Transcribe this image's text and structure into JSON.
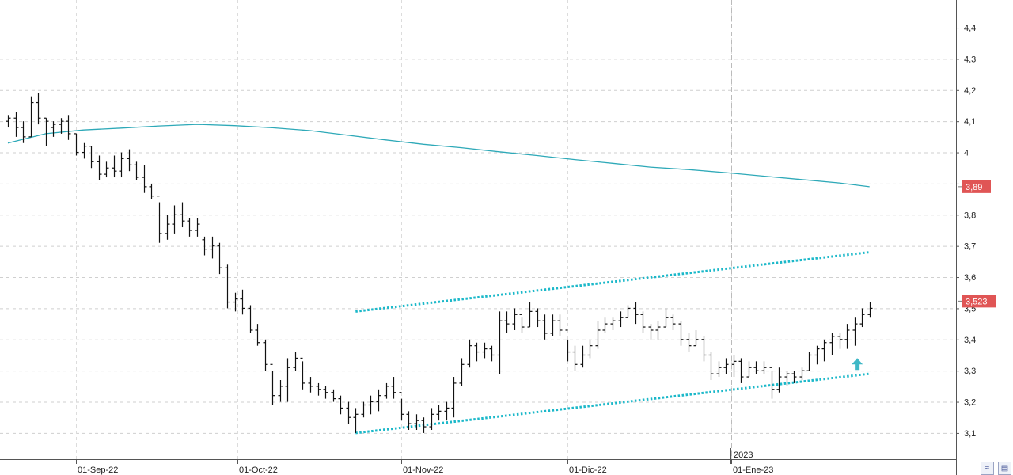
{
  "chart_data": {
    "type": "ohlc",
    "title": "",
    "xlabel": "",
    "ylabel": "",
    "ylim": [
      3.016,
      4.489
    ],
    "y_ticks": [
      "3,1",
      "3,2",
      "3,3",
      "3,4",
      "3,5",
      "3,6",
      "3,7",
      "3,8",
      "3,9",
      "4",
      "4,1",
      "4,2",
      "4,3",
      "4,4"
    ],
    "y_tick_values": [
      3.1,
      3.2,
      3.3,
      3.4,
      3.5,
      3.6,
      3.7,
      3.8,
      3.9,
      4.0,
      4.1,
      4.2,
      4.3,
      4.4
    ],
    "x_ticks": [
      {
        "label": "01-Sep-22",
        "date": "2022-09-01"
      },
      {
        "label": "01-Oct-22",
        "date": "2022-10-01"
      },
      {
        "label": "01-Nov-22",
        "date": "2022-11-01"
      },
      {
        "label": "01-Dic-22",
        "date": "2022-12-01"
      },
      {
        "label": "01-Ene-23",
        "date": "2023-01-01"
      }
    ],
    "year_marker": {
      "label": "2023",
      "date": "2023-01-01"
    },
    "grid": true,
    "price_badges": [
      {
        "label": "3,89",
        "value": 3.89,
        "color": "#e05555"
      },
      {
        "label": "3,523",
        "value": 3.523,
        "color": "#e05555"
      }
    ],
    "moving_average": {
      "color": "#2ea9b8",
      "points": [
        [
          "2022-08-19",
          4.03
        ],
        [
          "2022-08-26",
          4.06
        ],
        [
          "2022-09-02",
          4.072
        ],
        [
          "2022-09-09",
          4.078
        ],
        [
          "2022-09-16",
          4.085
        ],
        [
          "2022-09-23",
          4.09
        ],
        [
          "2022-09-30",
          4.086
        ],
        [
          "2022-10-07",
          4.079
        ],
        [
          "2022-10-14",
          4.07
        ],
        [
          "2022-10-21",
          4.055
        ],
        [
          "2022-10-28",
          4.04
        ],
        [
          "2022-11-04",
          4.026
        ],
        [
          "2022-11-11",
          4.015
        ],
        [
          "2022-11-18",
          4.002
        ],
        [
          "2022-11-25",
          3.99
        ],
        [
          "2022-12-02",
          3.977
        ],
        [
          "2022-12-09",
          3.965
        ],
        [
          "2022-12-16",
          3.953
        ],
        [
          "2022-12-23",
          3.945
        ],
        [
          "2022-12-30",
          3.935
        ],
        [
          "2023-01-06",
          3.924
        ],
        [
          "2023-01-13",
          3.913
        ],
        [
          "2023-01-20",
          3.902
        ],
        [
          "2023-01-26",
          3.89
        ]
      ]
    },
    "channel_lines": [
      {
        "name": "upper",
        "color": "#1bb8c9",
        "from": [
          "2022-10-24",
          3.49
        ],
        "to": [
          "2023-01-26",
          3.68
        ]
      },
      {
        "name": "lower",
        "color": "#1bb8c9",
        "from": [
          "2022-10-24",
          3.1
        ],
        "to": [
          "2023-01-26",
          3.29
        ]
      }
    ],
    "signal": {
      "type": "arrow-up",
      "date": "2023-01-25",
      "value": 3.32,
      "color": "#3fb8c6"
    },
    "bars": [
      [
        "2022-08-19",
        4.1,
        4.12,
        4.08,
        4.11
      ],
      [
        "2022-08-22",
        4.11,
        4.13,
        4.05,
        4.08
      ],
      [
        "2022-08-23",
        4.08,
        4.1,
        4.03,
        4.05
      ],
      [
        "2022-08-24",
        4.05,
        4.18,
        4.05,
        4.16
      ],
      [
        "2022-08-25",
        4.16,
        4.19,
        4.09,
        4.11
      ],
      [
        "2022-08-26",
        4.11,
        4.11,
        4.02,
        4.1
      ],
      [
        "2022-08-29",
        4.08,
        4.1,
        4.05,
        4.09
      ],
      [
        "2022-08-30",
        4.09,
        4.11,
        4.06,
        4.1
      ],
      [
        "2022-08-31",
        4.1,
        4.12,
        4.04,
        4.06
      ],
      [
        "2022-09-01",
        4.06,
        4.06,
        3.99,
        4.0
      ],
      [
        "2022-09-02",
        4.0,
        4.03,
        3.98,
        4.02
      ],
      [
        "2022-09-05",
        4.02,
        4.02,
        3.95,
        3.97
      ],
      [
        "2022-09-06",
        3.97,
        3.99,
        3.91,
        3.93
      ],
      [
        "2022-09-07",
        3.93,
        3.97,
        3.92,
        3.95
      ],
      [
        "2022-09-08",
        3.95,
        3.99,
        3.92,
        3.94
      ],
      [
        "2022-09-09",
        3.94,
        4.0,
        3.92,
        3.98
      ],
      [
        "2022-09-12",
        3.98,
        4.01,
        3.94,
        3.96
      ],
      [
        "2022-09-13",
        3.96,
        3.97,
        3.91,
        3.92
      ],
      [
        "2022-09-14",
        3.92,
        3.96,
        3.87,
        3.89
      ],
      [
        "2022-09-15",
        3.89,
        3.9,
        3.85,
        3.86
      ],
      [
        "2022-09-16",
        3.86,
        3.84,
        3.71,
        3.74
      ],
      [
        "2022-09-19",
        3.74,
        3.8,
        3.72,
        3.77
      ],
      [
        "2022-09-20",
        3.77,
        3.83,
        3.74,
        3.8
      ],
      [
        "2022-09-21",
        3.8,
        3.84,
        3.76,
        3.78
      ],
      [
        "2022-09-22",
        3.78,
        3.79,
        3.73,
        3.75
      ],
      [
        "2022-09-23",
        3.75,
        3.79,
        3.73,
        3.77
      ],
      [
        "2022-09-26",
        3.72,
        3.73,
        3.67,
        3.69
      ],
      [
        "2022-09-27",
        3.69,
        3.73,
        3.66,
        3.7
      ],
      [
        "2022-09-28",
        3.7,
        3.71,
        3.61,
        3.63
      ],
      [
        "2022-09-29",
        3.63,
        3.64,
        3.5,
        3.52
      ],
      [
        "2022-09-30",
        3.52,
        3.55,
        3.49,
        3.53
      ],
      [
        "2022-10-03",
        3.53,
        3.56,
        3.48,
        3.5
      ],
      [
        "2022-10-04",
        3.5,
        3.51,
        3.42,
        3.43
      ],
      [
        "2022-10-05",
        3.43,
        3.45,
        3.38,
        3.39
      ],
      [
        "2022-10-06",
        3.39,
        3.4,
        3.3,
        3.32
      ],
      [
        "2022-10-07",
        3.32,
        3.3,
        3.19,
        3.22
      ],
      [
        "2022-10-10",
        3.22,
        3.27,
        3.2,
        3.25
      ],
      [
        "2022-10-11",
        3.25,
        3.34,
        3.2,
        3.31
      ],
      [
        "2022-10-12",
        3.31,
        3.36,
        3.3,
        3.34
      ],
      [
        "2022-10-13",
        3.34,
        3.33,
        3.24,
        3.26
      ],
      [
        "2022-10-14",
        3.26,
        3.28,
        3.23,
        3.25
      ],
      [
        "2022-10-17",
        3.25,
        3.26,
        3.22,
        3.24
      ],
      [
        "2022-10-18",
        3.24,
        3.25,
        3.21,
        3.23
      ],
      [
        "2022-10-19",
        3.23,
        3.24,
        3.2,
        3.21
      ],
      [
        "2022-10-20",
        3.21,
        3.22,
        3.16,
        3.18
      ],
      [
        "2022-10-21",
        3.18,
        3.2,
        3.13,
        3.15
      ],
      [
        "2022-10-24",
        3.15,
        3.18,
        3.1,
        3.16
      ],
      [
        "2022-10-25",
        3.16,
        3.2,
        3.15,
        3.19
      ],
      [
        "2022-10-26",
        3.19,
        3.22,
        3.16,
        3.2
      ],
      [
        "2022-10-27",
        3.2,
        3.24,
        3.17,
        3.22
      ],
      [
        "2022-10-28",
        3.22,
        3.26,
        3.21,
        3.25
      ],
      [
        "2022-10-31",
        3.25,
        3.28,
        3.21,
        3.23
      ],
      [
        "2022-11-01",
        3.23,
        3.21,
        3.14,
        3.16
      ],
      [
        "2022-11-02",
        3.16,
        3.17,
        3.11,
        3.13
      ],
      [
        "2022-11-03",
        3.13,
        3.16,
        3.11,
        3.14
      ],
      [
        "2022-11-04",
        3.14,
        3.15,
        3.1,
        3.12
      ],
      [
        "2022-11-07",
        3.12,
        3.18,
        3.11,
        3.16
      ],
      [
        "2022-11-08",
        3.16,
        3.19,
        3.14,
        3.17
      ],
      [
        "2022-11-09",
        3.17,
        3.2,
        3.14,
        3.18
      ],
      [
        "2022-11-10",
        3.18,
        3.28,
        3.15,
        3.26
      ],
      [
        "2022-11-11",
        3.26,
        3.34,
        3.25,
        3.32
      ],
      [
        "2022-11-14",
        3.32,
        3.4,
        3.31,
        3.38
      ],
      [
        "2022-11-15",
        3.38,
        3.39,
        3.33,
        3.36
      ],
      [
        "2022-11-16",
        3.36,
        3.39,
        3.34,
        3.37
      ],
      [
        "2022-11-17",
        3.37,
        3.38,
        3.33,
        3.35
      ],
      [
        "2022-11-18",
        3.35,
        3.49,
        3.29,
        3.46
      ],
      [
        "2022-11-21",
        3.46,
        3.49,
        3.42,
        3.45
      ],
      [
        "2022-11-22",
        3.45,
        3.5,
        3.43,
        3.48
      ],
      [
        "2022-11-23",
        3.48,
        3.47,
        3.42,
        3.44
      ],
      [
        "2022-11-24",
        3.44,
        3.52,
        3.44,
        3.49
      ],
      [
        "2022-11-25",
        3.49,
        3.5,
        3.44,
        3.46
      ],
      [
        "2022-11-28",
        3.46,
        3.48,
        3.4,
        3.42
      ],
      [
        "2022-11-29",
        3.42,
        3.48,
        3.41,
        3.46
      ],
      [
        "2022-11-30",
        3.46,
        3.48,
        3.41,
        3.43
      ],
      [
        "2022-12-01",
        3.43,
        3.4,
        3.33,
        3.36
      ],
      [
        "2022-12-02",
        3.36,
        3.38,
        3.3,
        3.32
      ],
      [
        "2022-12-05",
        3.32,
        3.38,
        3.31,
        3.35
      ],
      [
        "2022-12-06",
        3.35,
        3.4,
        3.34,
        3.38
      ],
      [
        "2022-12-07",
        3.38,
        3.46,
        3.37,
        3.43
      ],
      [
        "2022-12-08",
        3.43,
        3.47,
        3.42,
        3.45
      ],
      [
        "2022-12-09",
        3.45,
        3.47,
        3.43,
        3.46
      ],
      [
        "2022-12-12",
        3.46,
        3.49,
        3.44,
        3.47
      ],
      [
        "2022-12-13",
        3.47,
        3.51,
        3.47,
        3.5
      ],
      [
        "2022-12-14",
        3.5,
        3.52,
        3.45,
        3.48
      ],
      [
        "2022-12-15",
        3.48,
        3.49,
        3.42,
        3.44
      ],
      [
        "2022-12-16",
        3.44,
        3.45,
        3.4,
        3.43
      ],
      [
        "2022-12-19",
        3.43,
        3.46,
        3.4,
        3.44
      ],
      [
        "2022-12-20",
        3.44,
        3.5,
        3.44,
        3.47
      ],
      [
        "2022-12-21",
        3.47,
        3.48,
        3.43,
        3.45
      ],
      [
        "2022-12-22",
        3.45,
        3.46,
        3.38,
        3.4
      ],
      [
        "2022-12-23",
        3.4,
        3.42,
        3.36,
        3.38
      ],
      [
        "2022-12-26",
        3.38,
        3.43,
        3.38,
        3.4
      ],
      [
        "2022-12-27",
        3.4,
        3.41,
        3.33,
        3.35
      ],
      [
        "2022-12-28",
        3.35,
        3.36,
        3.27,
        3.29
      ],
      [
        "2022-12-29",
        3.29,
        3.33,
        3.28,
        3.31
      ],
      [
        "2022-12-30",
        3.31,
        3.34,
        3.29,
        3.32
      ],
      [
        "2023-01-02",
        3.32,
        3.35,
        3.28,
        3.33
      ],
      [
        "2023-01-03",
        3.33,
        3.34,
        3.26,
        3.28
      ],
      [
        "2023-01-04",
        3.28,
        3.33,
        3.28,
        3.31
      ],
      [
        "2023-01-05",
        3.31,
        3.33,
        3.29,
        3.3
      ],
      [
        "2023-01-06",
        3.3,
        3.33,
        3.29,
        3.31
      ],
      [
        "2023-01-09",
        3.31,
        3.3,
        3.21,
        3.24
      ],
      [
        "2023-01-10",
        3.24,
        3.31,
        3.23,
        3.28
      ],
      [
        "2023-01-11",
        3.28,
        3.3,
        3.25,
        3.29
      ],
      [
        "2023-01-12",
        3.29,
        3.3,
        3.26,
        3.28
      ],
      [
        "2023-01-13",
        3.28,
        3.31,
        3.27,
        3.3
      ],
      [
        "2023-01-16",
        3.3,
        3.36,
        3.3,
        3.35
      ],
      [
        "2023-01-17",
        3.35,
        3.38,
        3.32,
        3.37
      ],
      [
        "2023-01-18",
        3.37,
        3.4,
        3.33,
        3.39
      ],
      [
        "2023-01-19",
        3.39,
        3.42,
        3.35,
        3.41
      ],
      [
        "2023-01-20",
        3.41,
        3.42,
        3.37,
        3.4
      ],
      [
        "2023-01-23",
        3.4,
        3.45,
        3.37,
        3.43
      ],
      [
        "2023-01-24",
        3.43,
        3.47,
        3.38,
        3.45
      ]
    ],
    "bars_tail": [
      [
        "2023-01-25",
        3.45,
        3.5,
        3.44,
        3.48
      ],
      [
        "2023-01-25b",
        3.48,
        3.52,
        3.47,
        3.5
      ]
    ]
  },
  "controls": {
    "scroll_icon": "double-chevron-icon",
    "save_icon": "floppy-disk-icon"
  }
}
